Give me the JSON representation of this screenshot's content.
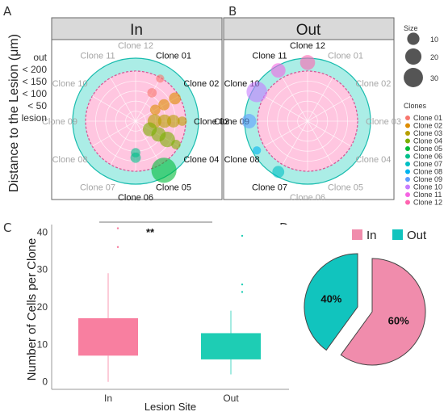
{
  "panels": {
    "A": {
      "letter": "A",
      "facet_title": "In",
      "ylabel": "Distance to the Lesion (μm)",
      "radial_labels": [
        "out",
        "< 200",
        "< 150",
        "< 100",
        "< 50",
        "lesion"
      ]
    },
    "B": {
      "letter": "B",
      "facet_title": "Out"
    },
    "C": {
      "letter": "C",
      "ylabel": "Number of Cells per Clone",
      "xlabel": "Lesion Site",
      "significance": "**"
    },
    "D": {
      "letter": "D"
    }
  },
  "legend": {
    "size": {
      "title": "Size",
      "values": [
        10,
        20,
        30
      ]
    },
    "clones": {
      "title": "Clones",
      "items": [
        {
          "name": "Clone 01",
          "color": "#F8766D"
        },
        {
          "name": "Clone 02",
          "color": "#DE8C00"
        },
        {
          "name": "Clone 03",
          "color": "#B79F00"
        },
        {
          "name": "Clone 04",
          "color": "#7CAE00"
        },
        {
          "name": "Clone 05",
          "color": "#00BA38"
        },
        {
          "name": "Clone 06",
          "color": "#00C08B"
        },
        {
          "name": "Clone 07",
          "color": "#00BFC4"
        },
        {
          "name": "Clone 08",
          "color": "#00B4F0"
        },
        {
          "name": "Clone 09",
          "color": "#619CFF"
        },
        {
          "name": "Clone 10",
          "color": "#C77CFF"
        },
        {
          "name": "Clone 11",
          "color": "#F564E3"
        },
        {
          "name": "Clone 12",
          "color": "#FF64B0"
        }
      ]
    }
  },
  "chart_data": [
    {
      "type": "scatter",
      "panel": "A",
      "title": "In",
      "coord": "polar",
      "theta_labels": [
        "Clone 01",
        "Clone 02",
        "Clone 03",
        "Clone 04",
        "Clone 05",
        "Clone 06",
        "Clone 07",
        "Clone 08",
        "Clone 09",
        "Clone 10",
        "Clone 11",
        "Clone 12"
      ],
      "highlighted_clones": [
        "Clone 01",
        "Clone 02",
        "Clone 03",
        "Clone 04",
        "Clone 05",
        "Clone 06"
      ],
      "radial_scale": [
        "lesion",
        "< 50",
        "< 100",
        "< 150",
        "< 200",
        "out"
      ],
      "points": [
        {
          "clone": "Clone 01",
          "radius": 0.78,
          "size": 2
        },
        {
          "clone": "Clone 01",
          "radius": 0.52,
          "size": 3
        },
        {
          "clone": "Clone 02",
          "radius": 0.72,
          "size": 6
        },
        {
          "clone": "Clone 02",
          "radius": 0.52,
          "size": 5
        },
        {
          "clone": "Clone 02",
          "radius": 0.36,
          "size": 4
        },
        {
          "clone": "Clone 03",
          "radius": 0.74,
          "size": 3
        },
        {
          "clone": "Clone 03",
          "radius": 0.6,
          "size": 7
        },
        {
          "clone": "Clone 03",
          "radius": 0.46,
          "size": 8
        },
        {
          "clone": "Clone 03",
          "radius": 0.3,
          "size": 9
        },
        {
          "clone": "Clone 04",
          "radius": 0.74,
          "size": 3
        },
        {
          "clone": "Clone 04",
          "radius": 0.58,
          "size": 12
        },
        {
          "clone": "Clone 04",
          "radius": 0.42,
          "size": 10
        },
        {
          "clone": "Clone 04",
          "radius": 0.26,
          "size": 9
        },
        {
          "clone": "Clone 05",
          "radius": 0.9,
          "size": 38
        },
        {
          "clone": "Clone 06",
          "radius": 0.58,
          "size": 4
        },
        {
          "clone": "Clone 06",
          "radius": 0.5,
          "size": 3
        }
      ]
    },
    {
      "type": "scatter",
      "panel": "B",
      "title": "Out",
      "coord": "polar",
      "theta_labels": [
        "Clone 01",
        "Clone 02",
        "Clone 03",
        "Clone 04",
        "Clone 05",
        "Clone 06",
        "Clone 07",
        "Clone 08",
        "Clone 09",
        "Clone 10",
        "Clone 11",
        "Clone 12"
      ],
      "highlighted_clones": [
        "Clone 07",
        "Clone 08",
        "Clone 09",
        "Clone 10",
        "Clone 11",
        "Clone 12"
      ],
      "radial_scale": [
        "lesion",
        "< 50",
        "< 100",
        "< 150",
        "< 200",
        "out"
      ],
      "points": [
        {
          "clone": "Clone 07",
          "radius": 0.93,
          "size": 6
        },
        {
          "clone": "Clone 08",
          "radius": 0.93,
          "size": 2
        },
        {
          "clone": "Clone 09",
          "radius": 0.93,
          "size": 10
        },
        {
          "clone": "Clone 10",
          "radius": 0.93,
          "size": 24
        },
        {
          "clone": "Clone 11",
          "radius": 0.93,
          "size": 10
        },
        {
          "clone": "Clone 12",
          "radius": 0.93,
          "size": 11
        }
      ]
    },
    {
      "type": "box",
      "panel": "C",
      "xlabel": "Lesion Site",
      "ylabel": "Number of Cells per Clone",
      "ylim": [
        0,
        42
      ],
      "yticks": [
        0,
        10,
        20,
        30,
        40
      ],
      "categories": [
        "In",
        "Out"
      ],
      "boxes": [
        {
          "name": "In",
          "color": "#F87FA0",
          "min": 0,
          "q1": 7,
          "median": 14,
          "q3": 17,
          "max": 29,
          "outliers": [
            36,
            41
          ]
        },
        {
          "name": "Out",
          "color": "#1ECDB4",
          "min": 2,
          "q1": 6,
          "median": 9,
          "q3": 13,
          "max": 19,
          "outliers": [
            24,
            26,
            39
          ]
        }
      ]
    },
    {
      "type": "pie",
      "panel": "D",
      "slices": [
        {
          "label": "In",
          "value": 60,
          "display": "60%",
          "color": "#F08CAC"
        },
        {
          "label": "Out",
          "value": 40,
          "display": "40%",
          "color": "#11C4BE"
        }
      ]
    }
  ]
}
